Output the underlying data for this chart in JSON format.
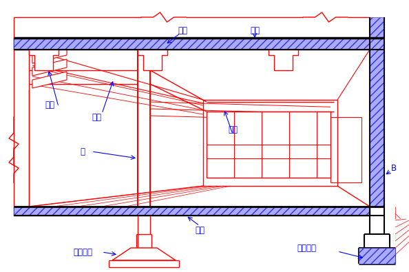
{
  "bg_color": "#ffffff",
  "red": "#FF0000",
  "blue": "#0000FF",
  "black": "#000000",
  "hatch_blue": "#3333CC",
  "figsize": [
    5.94,
    3.95
  ],
  "dpi": 100,
  "labels": {
    "zhuliangTop": "主梁",
    "louban": "楼板",
    "ciliangLeft": "次梁",
    "zhuliangLeft": "主梁",
    "zhuLeft": "柱",
    "ciliang2": "次梁",
    "dimian": "地面",
    "duliji": "独立基础",
    "tiaoxingjicheng": "条形基础",
    "B": "B"
  }
}
